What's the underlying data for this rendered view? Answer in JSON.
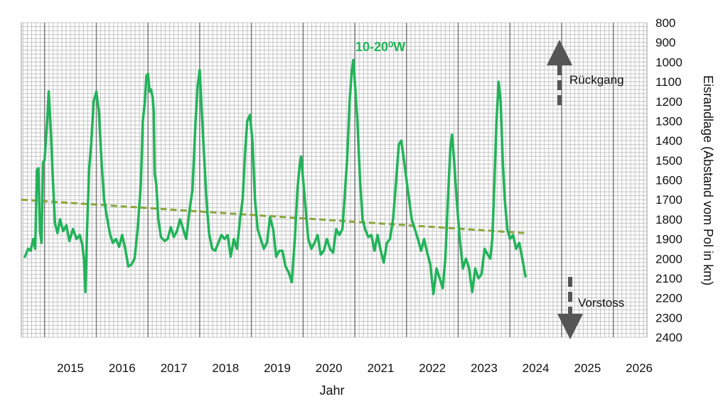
{
  "chart_data": {
    "type": "line",
    "xlabel": "Jahr",
    "ylabel": "Eisrandlage (Abstand vom Pol in km)",
    "x_ticks": [
      "2015",
      "2016",
      "2017",
      "2018",
      "2019",
      "2020",
      "2021",
      "2022",
      "2023",
      "2024",
      "2025",
      "2026"
    ],
    "y_ticks": [
      "800",
      "900",
      "1000",
      "1100",
      "1200",
      "1300",
      "1400",
      "1500",
      "1600",
      "1700",
      "1800",
      "1900",
      "2000",
      "2100",
      "2200",
      "2300",
      "2400"
    ],
    "xlim": [
      2014.55,
      2026.65
    ],
    "ylim": [
      800,
      2400
    ],
    "y_inverted": true,
    "grid": true,
    "series": [
      {
        "name": "10-20⁰W",
        "color": "#22b35a",
        "points": [
          [
            2014.62,
            1990
          ],
          [
            2014.68,
            1950
          ],
          [
            2014.73,
            1960
          ],
          [
            2014.78,
            1900
          ],
          [
            2014.82,
            1950
          ],
          [
            2014.85,
            1550
          ],
          [
            2014.88,
            1540
          ],
          [
            2014.91,
            1860
          ],
          [
            2014.94,
            1920
          ],
          [
            2014.97,
            1510
          ],
          [
            2015.0,
            1500
          ],
          [
            2015.05,
            1300
          ],
          [
            2015.08,
            1150
          ],
          [
            2015.12,
            1350
          ],
          [
            2015.16,
            1600
          ],
          [
            2015.2,
            1820
          ],
          [
            2015.25,
            1870
          ],
          [
            2015.3,
            1800
          ],
          [
            2015.36,
            1860
          ],
          [
            2015.42,
            1830
          ],
          [
            2015.48,
            1910
          ],
          [
            2015.55,
            1850
          ],
          [
            2015.62,
            1900
          ],
          [
            2015.68,
            1880
          ],
          [
            2015.73,
            1930
          ],
          [
            2015.76,
            2000
          ],
          [
            2015.79,
            2170
          ],
          [
            2015.82,
            1860
          ],
          [
            2015.86,
            1550
          ],
          [
            2015.9,
            1420
          ],
          [
            2015.95,
            1200
          ],
          [
            2016.0,
            1150
          ],
          [
            2016.05,
            1250
          ],
          [
            2016.1,
            1500
          ],
          [
            2016.15,
            1700
          ],
          [
            2016.2,
            1780
          ],
          [
            2016.26,
            1870
          ],
          [
            2016.32,
            1920
          ],
          [
            2016.38,
            1900
          ],
          [
            2016.44,
            1940
          ],
          [
            2016.5,
            1880
          ],
          [
            2016.56,
            1950
          ],
          [
            2016.62,
            2040
          ],
          [
            2016.68,
            2030
          ],
          [
            2016.74,
            2000
          ],
          [
            2016.8,
            1850
          ],
          [
            2016.86,
            1630
          ],
          [
            2016.9,
            1300
          ],
          [
            2016.94,
            1200
          ],
          [
            2016.97,
            1070
          ],
          [
            2017.0,
            1060
          ],
          [
            2017.03,
            1150
          ],
          [
            2017.06,
            1140
          ],
          [
            2017.09,
            1180
          ],
          [
            2017.11,
            1250
          ],
          [
            2017.13,
            1570
          ],
          [
            2017.16,
            1620
          ],
          [
            2017.2,
            1800
          ],
          [
            2017.25,
            1890
          ],
          [
            2017.32,
            1910
          ],
          [
            2017.38,
            1900
          ],
          [
            2017.44,
            1840
          ],
          [
            2017.5,
            1890
          ],
          [
            2017.56,
            1860
          ],
          [
            2017.62,
            1800
          ],
          [
            2017.68,
            1850
          ],
          [
            2017.74,
            1900
          ],
          [
            2017.8,
            1760
          ],
          [
            2017.86,
            1650
          ],
          [
            2017.92,
            1300
          ],
          [
            2017.96,
            1120
          ],
          [
            2018.0,
            1040
          ],
          [
            2018.04,
            1250
          ],
          [
            2018.08,
            1450
          ],
          [
            2018.13,
            1700
          ],
          [
            2018.18,
            1870
          ],
          [
            2018.24,
            1950
          ],
          [
            2018.3,
            1960
          ],
          [
            2018.36,
            1920
          ],
          [
            2018.42,
            1880
          ],
          [
            2018.48,
            1900
          ],
          [
            2018.54,
            1880
          ],
          [
            2018.6,
            1990
          ],
          [
            2018.66,
            1900
          ],
          [
            2018.72,
            1950
          ],
          [
            2018.78,
            1800
          ],
          [
            2018.83,
            1700
          ],
          [
            2018.88,
            1450
          ],
          [
            2018.92,
            1300
          ],
          [
            2018.97,
            1270
          ],
          [
            2019.02,
            1400
          ],
          [
            2019.07,
            1700
          ],
          [
            2019.12,
            1850
          ],
          [
            2019.18,
            1900
          ],
          [
            2019.24,
            1950
          ],
          [
            2019.3,
            1920
          ],
          [
            2019.36,
            1790
          ],
          [
            2019.42,
            1850
          ],
          [
            2019.48,
            1990
          ],
          [
            2019.54,
            1960
          ],
          [
            2019.6,
            1960
          ],
          [
            2019.66,
            2040
          ],
          [
            2019.72,
            2070
          ],
          [
            2019.78,
            2120
          ],
          [
            2019.84,
            1900
          ],
          [
            2019.89,
            1650
          ],
          [
            2019.93,
            1530
          ],
          [
            2019.96,
            1480
          ],
          [
            2020.0,
            1600
          ],
          [
            2020.05,
            1750
          ],
          [
            2020.1,
            1900
          ],
          [
            2020.16,
            1950
          ],
          [
            2020.22,
            1920
          ],
          [
            2020.28,
            1880
          ],
          [
            2020.34,
            1980
          ],
          [
            2020.4,
            1960
          ],
          [
            2020.46,
            1900
          ],
          [
            2020.52,
            1950
          ],
          [
            2020.58,
            1970
          ],
          [
            2020.64,
            1850
          ],
          [
            2020.7,
            1880
          ],
          [
            2020.76,
            1850
          ],
          [
            2020.8,
            1700
          ],
          [
            2020.85,
            1500
          ],
          [
            2020.9,
            1200
          ],
          [
            2020.94,
            1050
          ],
          [
            2020.97,
            990
          ],
          [
            2021.0,
            1100
          ],
          [
            2021.05,
            1300
          ],
          [
            2021.1,
            1600
          ],
          [
            2021.15,
            1800
          ],
          [
            2021.2,
            1850
          ],
          [
            2021.26,
            1890
          ],
          [
            2021.32,
            1880
          ],
          [
            2021.38,
            1960
          ],
          [
            2021.44,
            1880
          ],
          [
            2021.5,
            1960
          ],
          [
            2021.56,
            2020
          ],
          [
            2021.62,
            1920
          ],
          [
            2021.68,
            1900
          ],
          [
            2021.74,
            1800
          ],
          [
            2021.8,
            1600
          ],
          [
            2021.85,
            1420
          ],
          [
            2021.9,
            1400
          ],
          [
            2021.95,
            1500
          ],
          [
            2022.0,
            1600
          ],
          [
            2022.05,
            1700
          ],
          [
            2022.1,
            1800
          ],
          [
            2022.16,
            1850
          ],
          [
            2022.22,
            1900
          ],
          [
            2022.28,
            1960
          ],
          [
            2022.34,
            1900
          ],
          [
            2022.4,
            1970
          ],
          [
            2022.46,
            2030
          ],
          [
            2022.52,
            2180
          ],
          [
            2022.58,
            2050
          ],
          [
            2022.64,
            2100
          ],
          [
            2022.7,
            2150
          ],
          [
            2022.75,
            2000
          ],
          [
            2022.8,
            1700
          ],
          [
            2022.85,
            1430
          ],
          [
            2022.88,
            1370
          ],
          [
            2022.92,
            1500
          ],
          [
            2022.97,
            1700
          ],
          [
            2023.03,
            1900
          ],
          [
            2023.09,
            2050
          ],
          [
            2023.15,
            2000
          ],
          [
            2023.21,
            2050
          ],
          [
            2023.27,
            2170
          ],
          [
            2023.33,
            2050
          ],
          [
            2023.39,
            2100
          ],
          [
            2023.45,
            2080
          ],
          [
            2023.51,
            1950
          ],
          [
            2023.57,
            1980
          ],
          [
            2023.62,
            2000
          ],
          [
            2023.66,
            1900
          ],
          [
            2023.7,
            1600
          ],
          [
            2023.74,
            1300
          ],
          [
            2023.78,
            1100
          ],
          [
            2023.82,
            1200
          ],
          [
            2023.86,
            1500
          ],
          [
            2023.9,
            1700
          ],
          [
            2023.95,
            1850
          ],
          [
            2024.0,
            1900
          ],
          [
            2024.06,
            1880
          ],
          [
            2024.12,
            1950
          ],
          [
            2024.18,
            1920
          ],
          [
            2024.24,
            2000
          ],
          [
            2024.3,
            2090
          ]
        ]
      },
      {
        "name": "",
        "type": "trend",
        "style": "dashed",
        "color": "#8aa63c",
        "points": [
          [
            2014.55,
            1700
          ],
          [
            2024.3,
            1870
          ]
        ]
      }
    ],
    "annotations": {
      "series_label": "10-20⁰W",
      "retreat_label": "Rückgang",
      "advance_label": "Vorstoss"
    }
  }
}
